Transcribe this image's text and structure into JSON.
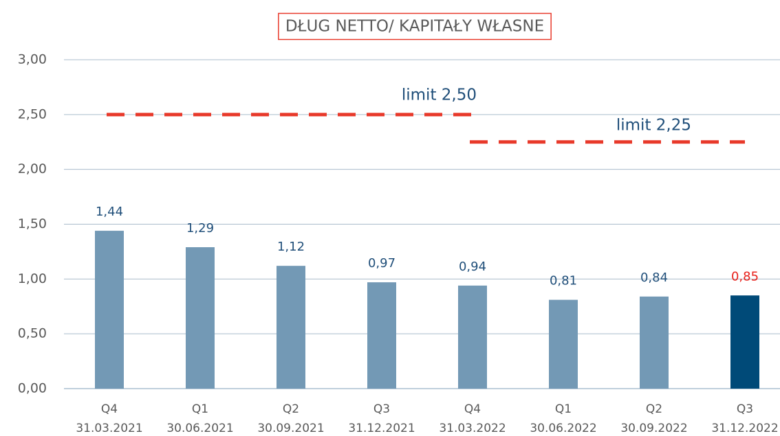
{
  "chart_data": {
    "type": "bar",
    "title": "DŁUG NETTO/ KAPITAŁY WŁASNE",
    "categories": [
      [
        "Q4",
        "31.03.2021"
      ],
      [
        "Q1",
        "30.06.2021"
      ],
      [
        "Q2",
        "30.09.2021"
      ],
      [
        "Q3",
        "31.12.2021"
      ],
      [
        "Q4",
        "31.03.2022"
      ],
      [
        "Q1",
        "30.06.2022"
      ],
      [
        "Q2",
        "30.09.2022"
      ],
      [
        "Q3",
        "31.12.2022"
      ]
    ],
    "values": [
      1.44,
      1.29,
      1.12,
      0.97,
      0.94,
      0.81,
      0.84,
      0.85
    ],
    "value_labels": [
      "1,44",
      "1,29",
      "1,12",
      "0,97",
      "0,94",
      "0,81",
      "0,84",
      "0,85"
    ],
    "colors": [
      "#7399b5",
      "#7399b5",
      "#7399b5",
      "#7399b5",
      "#7399b5",
      "#7399b5",
      "#7399b5",
      "#004a78"
    ],
    "label_colors": [
      "#1f4e79",
      "#1f4e79",
      "#1f4e79",
      "#1f4e79",
      "#1f4e79",
      "#1f4e79",
      "#1f4e79",
      "#e8201a"
    ],
    "ylim": [
      0,
      3
    ],
    "yticks": [
      {
        "value": 0,
        "label": "0,00"
      },
      {
        "value": 0.5,
        "label": "0,50"
      },
      {
        "value": 1,
        "label": "1,00"
      },
      {
        "value": 1.5,
        "label": "1,50"
      },
      {
        "value": 2,
        "label": "2,00"
      },
      {
        "value": 2.5,
        "label": "2,50"
      },
      {
        "value": 3,
        "label": "3,00"
      }
    ],
    "grid": true,
    "limits": [
      {
        "label": "limit 2,50",
        "value": 2.5,
        "start": 0,
        "end": 4,
        "color": "#e8392a"
      },
      {
        "label": "limit 2,25",
        "value": 2.25,
        "start": 4,
        "end": 7,
        "color": "#e8392a"
      }
    ]
  }
}
